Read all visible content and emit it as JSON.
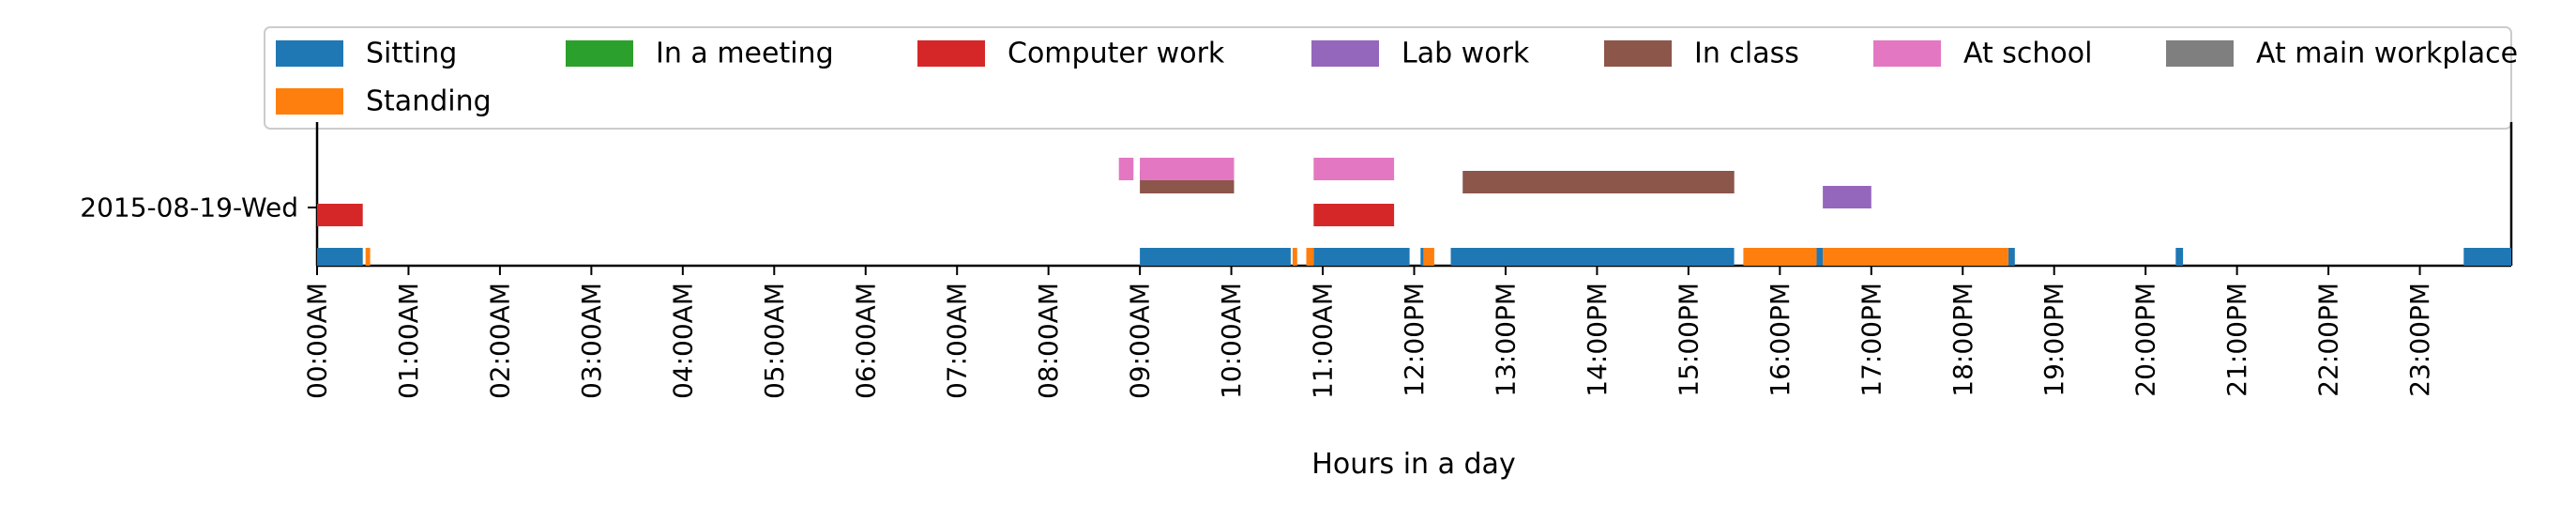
{
  "chart_data": {
    "type": "timeline",
    "ylabel_row": "2015-08-19-Wed",
    "xlabel": "Hours in a day",
    "xlim": [
      0,
      24
    ],
    "x_ticks": [
      "00:00AM",
      "01:00AM",
      "02:00AM",
      "03:00AM",
      "04:00AM",
      "05:00AM",
      "06:00AM",
      "07:00AM",
      "08:00AM",
      "09:00AM",
      "10:00AM",
      "11:00AM",
      "12:00PM",
      "13:00PM",
      "14:00PM",
      "15:00PM",
      "16:00PM",
      "17:00PM",
      "18:00PM",
      "19:00PM",
      "20:00PM",
      "21:00PM",
      "22:00PM",
      "23:00PM"
    ],
    "legend_position": "top",
    "series": [
      {
        "name": "Sitting",
        "color": "#1f77b4",
        "lane": 0,
        "intervals": [
          [
            0.0,
            0.5
          ],
          [
            9.0,
            10.65
          ],
          [
            10.9,
            11.95
          ],
          [
            12.07,
            12.12
          ],
          [
            12.4,
            15.5
          ],
          [
            16.4,
            16.47
          ],
          [
            18.5,
            18.57
          ],
          [
            20.33,
            20.41
          ],
          [
            23.48,
            24.0
          ]
        ]
      },
      {
        "name": "Standing",
        "color": "#ff7f0e",
        "lane": 0,
        "intervals": [
          [
            0.53,
            0.58
          ],
          [
            10.67,
            10.72
          ],
          [
            10.82,
            10.9
          ],
          [
            12.1,
            12.22
          ],
          [
            15.6,
            16.4
          ],
          [
            16.47,
            18.5
          ]
        ]
      },
      {
        "name": "In a meeting",
        "color": "#2ca02c",
        "lane": 1,
        "intervals": []
      },
      {
        "name": "Computer work",
        "color": "#d62728",
        "lane": 1,
        "intervals": [
          [
            0.0,
            0.5
          ],
          [
            10.9,
            11.78
          ]
        ]
      },
      {
        "name": "Lab work",
        "color": "#9467bd",
        "lane": 2,
        "intervals": [
          [
            16.47,
            17.0
          ]
        ]
      },
      {
        "name": "In class",
        "color": "#8c564b",
        "lane": 2,
        "intervals": [
          [
            9.0,
            10.03
          ],
          [
            12.53,
            15.5
          ]
        ]
      },
      {
        "name": "At school",
        "color": "#e377c2",
        "lane": 3,
        "intervals": [
          [
            8.77,
            8.93
          ],
          [
            9.0,
            10.03
          ],
          [
            10.9,
            11.78
          ]
        ]
      },
      {
        "name": "At main workplace",
        "color": "#7f7f7f",
        "lane": 3,
        "intervals": []
      }
    ]
  }
}
